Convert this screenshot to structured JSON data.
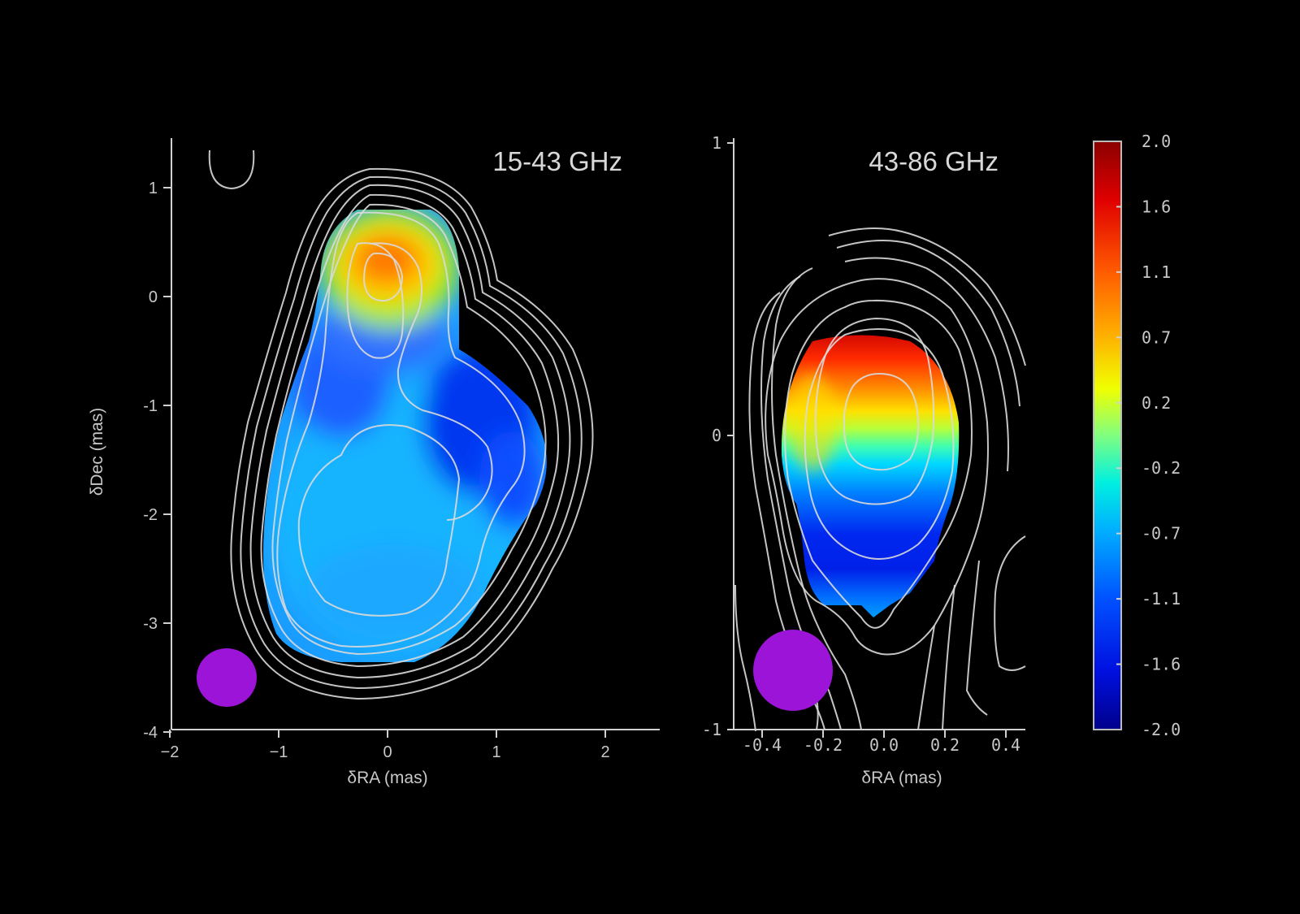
{
  "chart_data": [
    {
      "type": "heatmap",
      "title": "15-43 GHz",
      "xlabel": "δRA (mas)",
      "ylabel": "δDec (mas)",
      "xlim": [
        -2,
        2.5
      ],
      "ylim": [
        -4,
        1.4
      ],
      "x_ticks": [
        "−2",
        "−1",
        "0",
        "1",
        "2"
      ],
      "y_ticks": [
        "1",
        "0",
        "-1",
        "-2",
        "-3",
        "-4"
      ],
      "beam_color": "#9b14d8",
      "description_values": {
        "core_peak_index": 1.1,
        "jet_index": -0.9
      }
    },
    {
      "type": "heatmap",
      "title": "43-86 GHz",
      "xlabel": "δRA (mas)",
      "ylabel": "",
      "xlim": [
        -0.5,
        0.48
      ],
      "ylim": [
        -1,
        1
      ],
      "x_ticks": [
        "-0.4",
        "-0.2",
        "0.0",
        "0.2",
        "0.4"
      ],
      "y_ticks": [
        "1",
        "0",
        "-1"
      ],
      "beam_color": "#9b14d8",
      "description_values": {
        "core_peak_index": 1.9,
        "jet_index": -1.4
      }
    }
  ],
  "colorbar": {
    "min": -2.0,
    "max": 2.0,
    "ticks": [
      "2.0",
      "1.6",
      "1.1",
      "0.7",
      "0.2",
      "-0.2",
      "-0.7",
      "-1.1",
      "-1.6",
      "-2.0"
    ]
  }
}
